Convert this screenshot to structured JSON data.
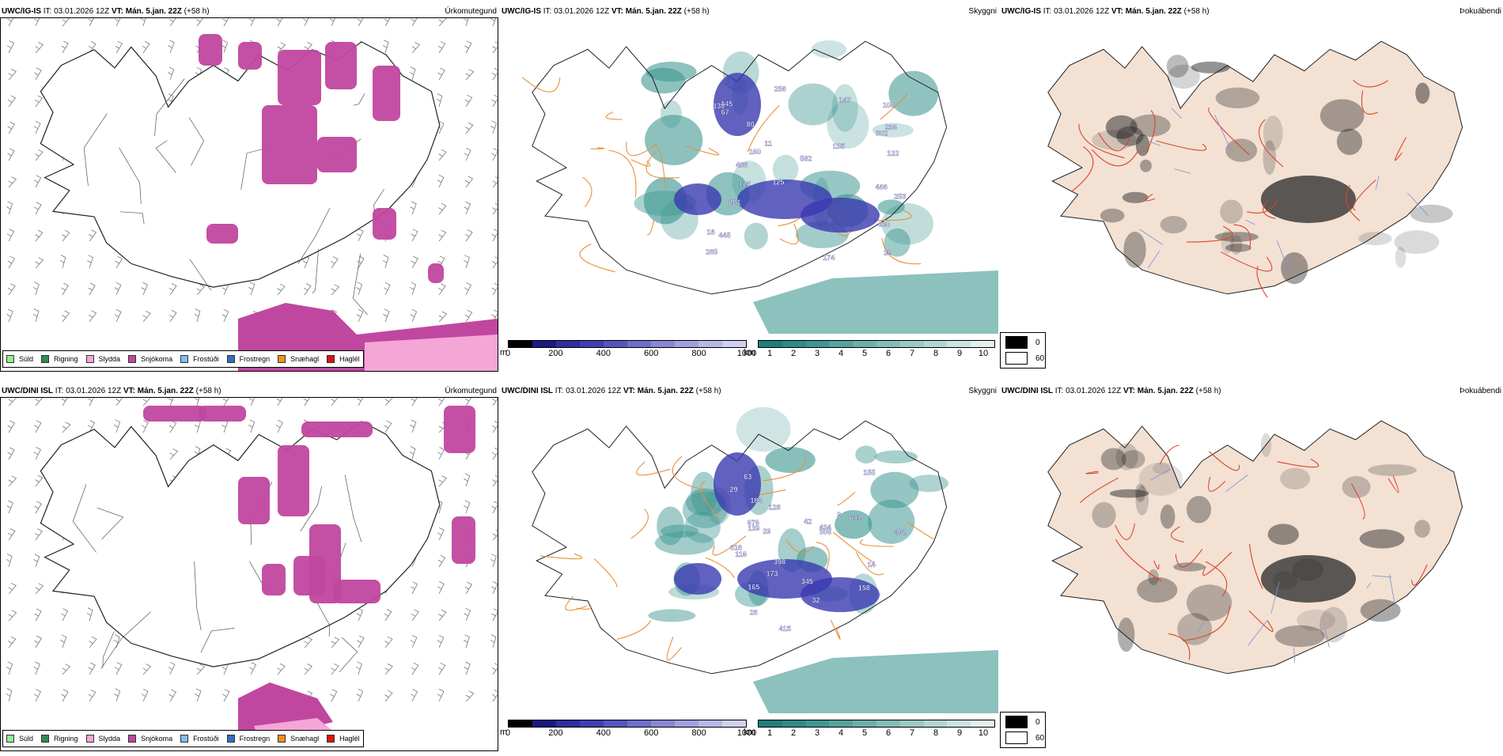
{
  "rows": [
    {
      "model": "UWC/IG-IS",
      "it_label": "IT:",
      "it_value": "03.01.2026 12Z",
      "vt_label": "VT:",
      "vt_value": "Mán. 5.jan. 22Z",
      "lead": "(+58 h)",
      "titles": {
        "precip": "Úrkomutegund",
        "cloud": "Skyggni",
        "fog": "Þokuábendi"
      }
    },
    {
      "model": "UWC/DINI ISL",
      "it_label": "IT:",
      "it_value": "03.01.2026 12Z",
      "vt_label": "VT:",
      "vt_value": "Mán. 5.jan. 22Z",
      "lead": "(+58 h)",
      "titles": {
        "precip": "Úrkomutegund",
        "cloud": "Skyggni",
        "fog": "Þokuábendi"
      }
    }
  ],
  "precip_legend": [
    {
      "label": "Súld",
      "color": "#90ee90"
    },
    {
      "label": "Rigning",
      "color": "#2e8b57"
    },
    {
      "label": "Slydda",
      "color": "#f4a6d7"
    },
    {
      "label": "Snjókoma",
      "color": "#c0479f"
    },
    {
      "label": "Frostúði",
      "color": "#87bdf0"
    },
    {
      "label": "Frostregn",
      "color": "#2f6fc0"
    },
    {
      "label": "Snæhagl",
      "color": "#f0901c"
    },
    {
      "label": "Haglél",
      "color": "#e01010"
    }
  ],
  "ceiling_scale": {
    "unit": "m",
    "ticks": [
      "0",
      "200",
      "400",
      "600",
      "800",
      "1000"
    ],
    "colors": [
      "#000000",
      "#1a1a80",
      "#2e2ea0",
      "#3f3fb4",
      "#5555c0",
      "#6e6ecc",
      "#8888d4",
      "#a0a0de",
      "#b8b8e6",
      "#d0d0f0"
    ]
  },
  "visibility_scale": {
    "unit": "km",
    "ticks": [
      "1",
      "2",
      "3",
      "4",
      "5",
      "6",
      "7",
      "8",
      "9",
      "10"
    ],
    "colors": [
      "#1f7f7a",
      "#2f8b86",
      "#3f9792",
      "#55a39e",
      "#6cafab",
      "#84bcb8",
      "#9bc9c6",
      "#b3d6d3",
      "#cbe3e1",
      "#e3f0ef"
    ]
  },
  "fog_key": {
    "high": "60",
    "low": "0",
    "high_color": "#ffffff",
    "low_color": "#000000"
  },
  "accent_colors": {
    "snow": "#c0479f",
    "sleet": "#f4a6d7",
    "cloud_teal": "#3f9792",
    "roads_orange": "#e8903a",
    "roads_red": "#d9452a",
    "land_fog": "#f3e1d3"
  },
  "ceiling_labels": [
    [
      "130",
      "486",
      "466",
      "265",
      "145",
      "147",
      "128",
      "253",
      "236",
      "302",
      "160",
      "122",
      "582",
      "261",
      "445",
      "11",
      "16",
      "174",
      "135",
      "80",
      "100",
      "630",
      "67",
      "125",
      "256",
      "39"
    ],
    [
      "398",
      "63",
      "29",
      "434",
      "462",
      "616",
      "155",
      "139",
      "345",
      "415",
      "676",
      "641",
      "308",
      "173",
      "165",
      "158",
      "14",
      "184",
      "128",
      "116",
      "29",
      "42",
      "32",
      "26",
      "9"
    ]
  ]
}
